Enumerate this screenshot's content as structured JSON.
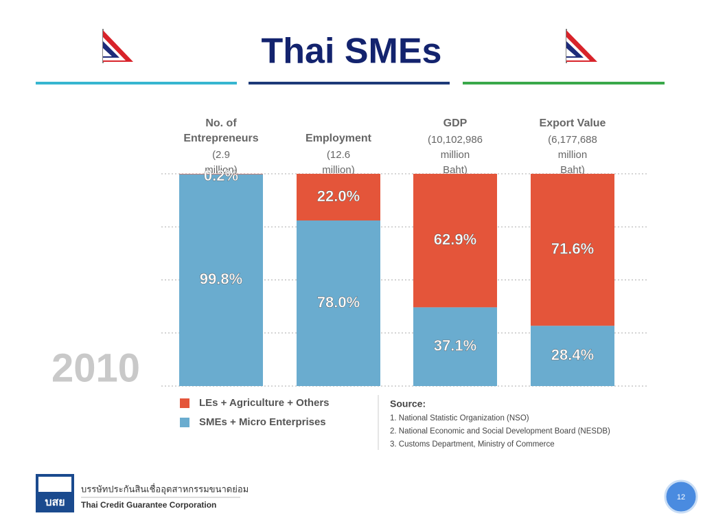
{
  "title": "Thai SMEs",
  "chart_data": {
    "type": "stacked-bar",
    "categories": [
      "No. of Entrepreneurs",
      "Employment",
      "GDP",
      "Export Value"
    ],
    "category_notes": [
      "(2.9 million)",
      "(12.6 million)",
      "(10,102,986 million Baht)",
      "(6,177,688 million Baht)"
    ],
    "series": [
      {
        "name": "SMEs + Micro Enterprises",
        "color": "#6aaccf",
        "values": [
          99.8,
          78.0,
          37.1,
          28.4
        ],
        "value_labels": [
          "99.8%",
          "78.0%",
          "37.1%",
          "28.4%"
        ]
      },
      {
        "name": "LEs + Agriculture + Others",
        "color": "#e4553a",
        "values": [
          0.2,
          22.0,
          62.9,
          71.6
        ],
        "value_labels": [
          "0.2%",
          "22.0%",
          "62.9%",
          "71.6%"
        ]
      }
    ],
    "ylim": [
      0,
      100
    ],
    "yticks": [
      0,
      25,
      50,
      75,
      100
    ],
    "show_tick_labels": false,
    "grid": true
  },
  "year_label": "2010",
  "source": {
    "title": "Source:",
    "items": [
      "1. National Statistic Organization (NSO)",
      "2. National Economic and Social Development Board (NESDB)",
      "3. Customs Department, Ministry of Commerce"
    ]
  },
  "footer": {
    "logo_text": "บสย",
    "thai_name": "บรรษัทประกันสินเชื่ออุตสาหกรรมขนาดย่อม",
    "english_name": "Thai Credit Guarantee Corporation"
  },
  "page_number": 12
}
